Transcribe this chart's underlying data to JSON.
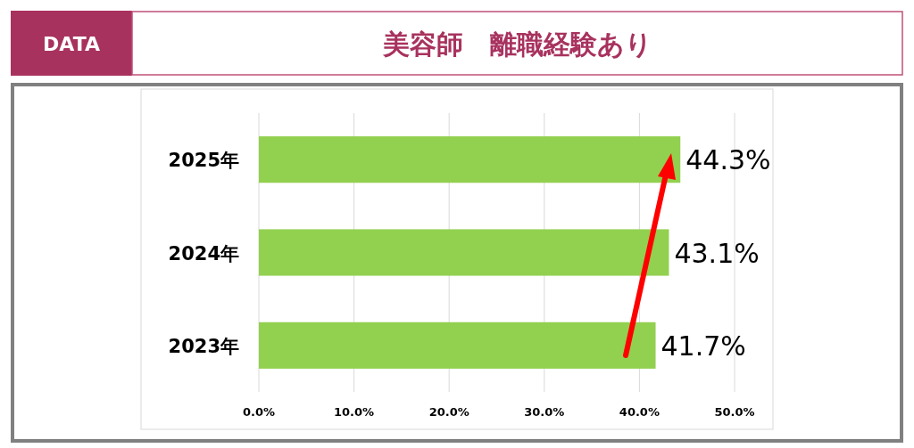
{
  "chart_data": {
    "type": "bar",
    "orientation": "horizontal",
    "title": "美容師　離職経験あり",
    "annotations": [
      "DATA"
    ],
    "categories": [
      "2025年",
      "2024年",
      "2023年"
    ],
    "values": [
      44.3,
      43.1,
      41.7
    ],
    "value_labels": [
      "44.3%",
      "43.1%",
      "41.7%"
    ],
    "color": "#92d050",
    "xlim": [
      0,
      50
    ],
    "xticks": [
      {
        "value": 0,
        "label": "0.0%"
      },
      {
        "value": 10,
        "label": "10.0%"
      },
      {
        "value": 20,
        "label": "20.0%"
      },
      {
        "value": 30,
        "label": "30.0%"
      },
      {
        "value": 40,
        "label": "40.0%"
      },
      {
        "value": 50,
        "label": "50.0%"
      }
    ],
    "grid": "x"
  }
}
